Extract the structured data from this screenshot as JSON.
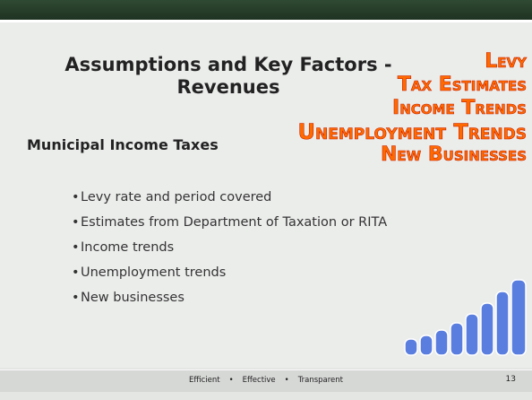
{
  "slide": {
    "title": "Assumptions and Key Factors - Revenues",
    "side_words": [
      "Levy",
      "Tax Estimates",
      "Income Trends",
      "Unemployment Trends",
      "New Businesses"
    ],
    "subtitle": "Municipal Income Taxes",
    "bullets": [
      "Levy rate and period covered",
      "Estimates from Department of Taxation or RITA",
      "Income trends",
      "Unemployment trends",
      "New businesses"
    ],
    "footer": [
      "Efficient",
      "Effective",
      "Transparent"
    ],
    "page_number": "13"
  }
}
